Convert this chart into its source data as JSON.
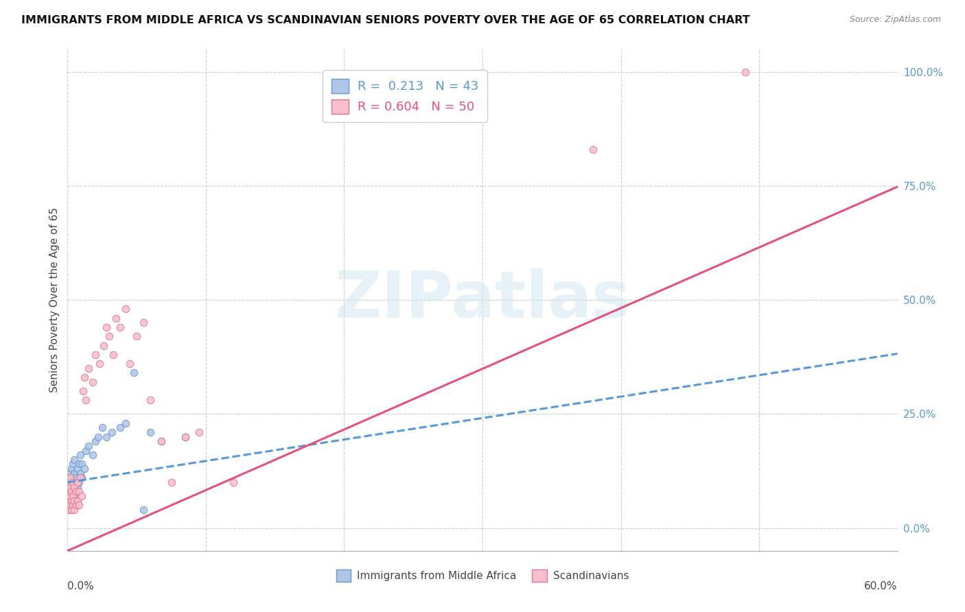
{
  "title": "IMMIGRANTS FROM MIDDLE AFRICA VS SCANDINAVIAN SENIORS POVERTY OVER THE AGE OF 65 CORRELATION CHART",
  "source": "Source: ZipAtlas.com",
  "ylabel": "Seniors Poverty Over the Age of 65",
  "xlim": [
    0.0,
    0.6
  ],
  "ylim": [
    -0.05,
    1.05
  ],
  "yticks": [
    0.0,
    0.25,
    0.5,
    0.75,
    1.0
  ],
  "ytick_labels": [
    "0.0%",
    "25.0%",
    "50.0%",
    "75.0%",
    "100.0%"
  ],
  "xtick_labels": [
    "0.0%",
    "60.0%"
  ],
  "legend_blue_R": "0.213",
  "legend_blue_N": "43",
  "legend_pink_R": "0.604",
  "legend_pink_N": "50",
  "legend_label_blue": "Immigrants from Middle Africa",
  "legend_label_pink": "Scandinavians",
  "watermark": "ZIPatlas",
  "blue_color": "#aec6e8",
  "blue_edge": "#6699cc",
  "pink_color": "#f8c0cc",
  "pink_edge": "#e87090",
  "blue_line_color": "#5599dd",
  "pink_line_color": "#e8507a",
  "scatter_size": 55,
  "blue_x": [
    0.001,
    0.001,
    0.001,
    0.002,
    0.002,
    0.002,
    0.002,
    0.003,
    0.003,
    0.003,
    0.004,
    0.004,
    0.004,
    0.005,
    0.005,
    0.005,
    0.005,
    0.006,
    0.006,
    0.007,
    0.007,
    0.008,
    0.008,
    0.009,
    0.009,
    0.01,
    0.01,
    0.012,
    0.013,
    0.015,
    0.018,
    0.02,
    0.022,
    0.025,
    0.028,
    0.032,
    0.038,
    0.042,
    0.048,
    0.055,
    0.06,
    0.068,
    0.085
  ],
  "blue_y": [
    0.05,
    0.08,
    0.1,
    0.06,
    0.09,
    0.11,
    0.12,
    0.07,
    0.1,
    0.13,
    0.08,
    0.11,
    0.14,
    0.07,
    0.09,
    0.12,
    0.15,
    0.08,
    0.11,
    0.09,
    0.13,
    0.1,
    0.14,
    0.12,
    0.16,
    0.11,
    0.14,
    0.13,
    0.17,
    0.18,
    0.16,
    0.19,
    0.2,
    0.22,
    0.2,
    0.21,
    0.22,
    0.23,
    0.34,
    0.04,
    0.21,
    0.19,
    0.2
  ],
  "pink_x": [
    0.001,
    0.001,
    0.001,
    0.001,
    0.002,
    0.002,
    0.002,
    0.002,
    0.003,
    0.003,
    0.003,
    0.004,
    0.004,
    0.004,
    0.005,
    0.005,
    0.005,
    0.006,
    0.006,
    0.007,
    0.007,
    0.008,
    0.008,
    0.009,
    0.01,
    0.011,
    0.012,
    0.013,
    0.015,
    0.018,
    0.02,
    0.023,
    0.026,
    0.028,
    0.03,
    0.033,
    0.035,
    0.038,
    0.042,
    0.045,
    0.05,
    0.055,
    0.06,
    0.068,
    0.075,
    0.085,
    0.095,
    0.12,
    0.38,
    0.49
  ],
  "pink_y": [
    0.04,
    0.06,
    0.08,
    0.1,
    0.05,
    0.07,
    0.09,
    0.11,
    0.04,
    0.06,
    0.08,
    0.05,
    0.07,
    0.1,
    0.04,
    0.06,
    0.09,
    0.05,
    0.08,
    0.06,
    0.1,
    0.05,
    0.08,
    0.11,
    0.07,
    0.3,
    0.33,
    0.28,
    0.35,
    0.32,
    0.38,
    0.36,
    0.4,
    0.44,
    0.42,
    0.38,
    0.46,
    0.44,
    0.48,
    0.36,
    0.42,
    0.45,
    0.28,
    0.19,
    0.1,
    0.2,
    0.21,
    0.1,
    0.83,
    1.0
  ],
  "pink_line_intercept": -0.05,
  "pink_line_slope": 1.33,
  "blue_line_intercept": 0.1,
  "blue_line_slope": 0.47
}
